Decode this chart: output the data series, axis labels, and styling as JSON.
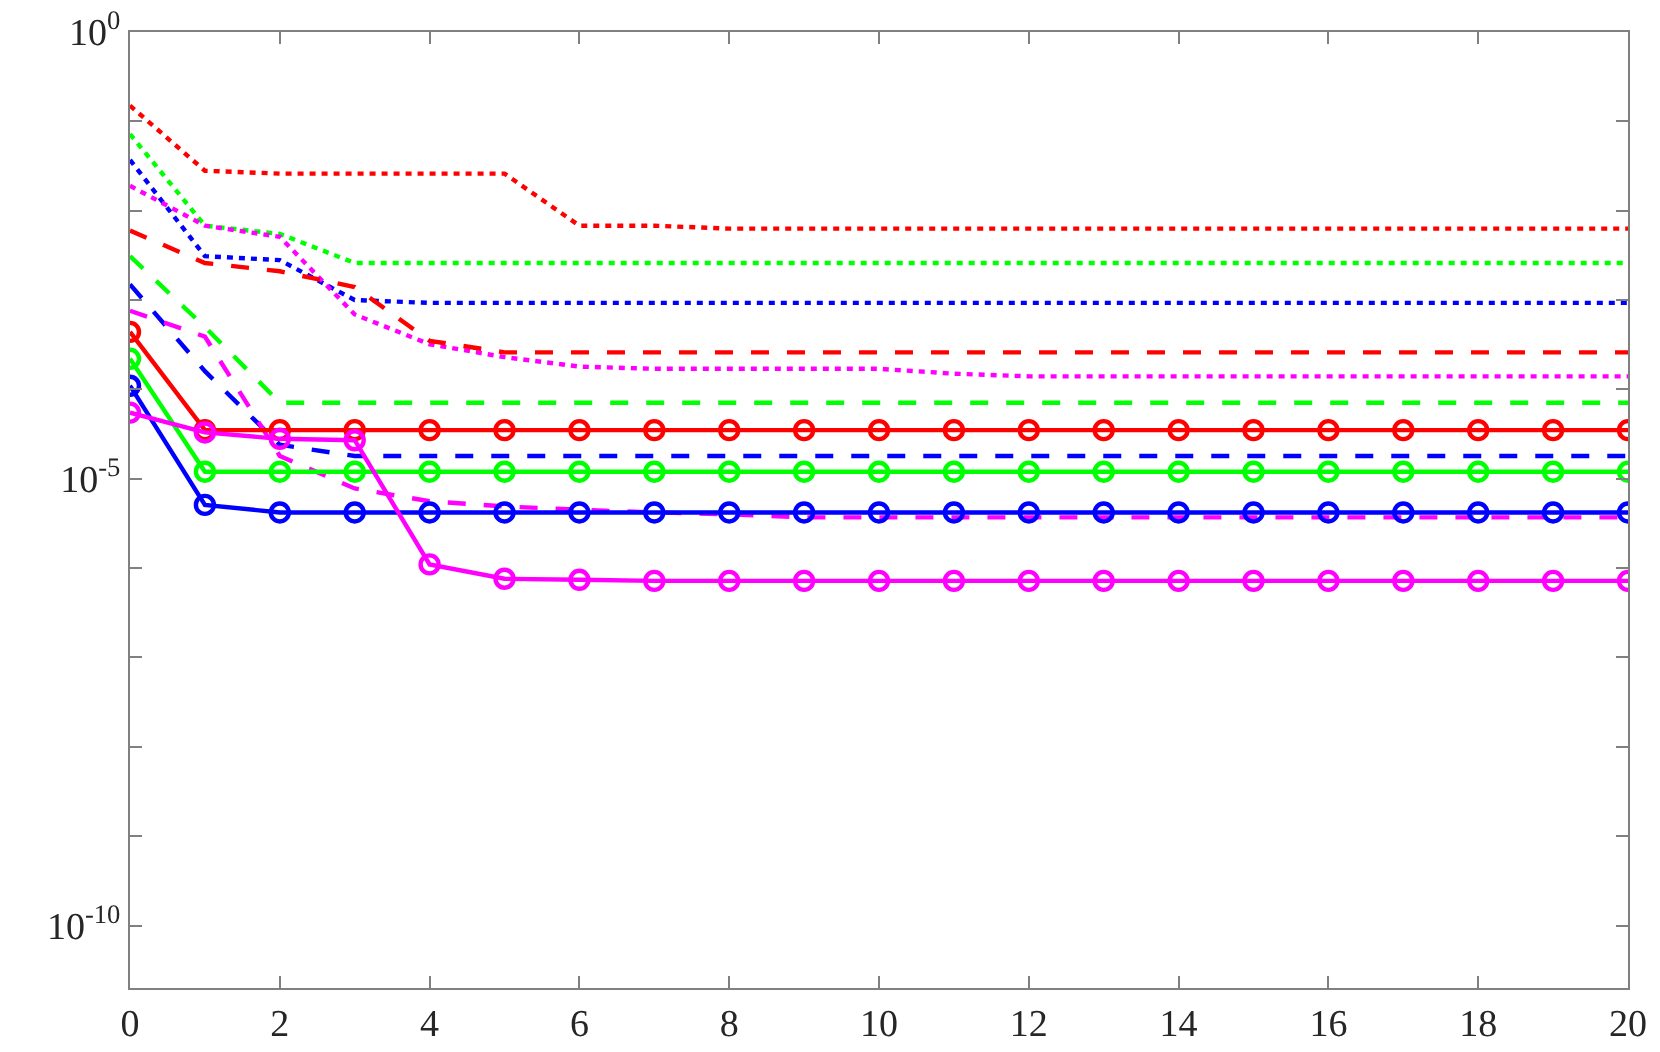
{
  "chart_data": {
    "type": "line",
    "x": [
      0,
      1,
      2,
      3,
      4,
      5,
      6,
      7,
      8,
      9,
      10,
      11,
      12,
      13,
      14,
      15,
      16,
      17,
      18,
      19,
      20
    ],
    "xlim": [
      0,
      20
    ],
    "xticks": [
      0,
      2,
      4,
      6,
      8,
      10,
      12,
      14,
      16,
      18,
      20
    ],
    "ylim": [
      2e-11,
      1
    ],
    "log": true,
    "grid": false,
    "yticks": [
      {
        "value": 1,
        "label": "10$^{0}$"
      },
      {
        "value": 0.1,
        "label": null
      },
      {
        "value": 0.01,
        "label": null
      },
      {
        "value": 0.001,
        "label": null
      },
      {
        "value": 0.0001,
        "label": null
      },
      {
        "value": 1e-05,
        "label": "10$^{-5}$"
      },
      {
        "value": 1e-06,
        "label": null
      },
      {
        "value": 1e-07,
        "label": null
      },
      {
        "value": 1e-08,
        "label": null
      },
      {
        "value": 1e-09,
        "label": null
      },
      {
        "value": 1e-10,
        "label": "10$^{-10}$"
      }
    ],
    "series": [
      {
        "color": "#ff0000",
        "line_style": "dotted",
        "marker": "none",
        "values": [
          0.15,
          0.028,
          0.026,
          0.026,
          0.026,
          0.026,
          0.0068,
          0.0068,
          0.0063,
          0.0063,
          0.0063,
          0.0063,
          0.0063,
          0.0063,
          0.0063,
          0.0063,
          0.0063,
          0.0063,
          0.0063,
          0.0063,
          0.0063
        ]
      },
      {
        "color": "#00ff00",
        "line_style": "dotted",
        "marker": "none",
        "values": [
          0.072,
          0.0068,
          0.0055,
          0.0026,
          0.0026,
          0.0026,
          0.0026,
          0.0026,
          0.0026,
          0.0026,
          0.0026,
          0.0026,
          0.0026,
          0.0026,
          0.0026,
          0.0026,
          0.0026,
          0.0026,
          0.0026,
          0.0026,
          0.0026
        ]
      },
      {
        "color": "#0000ff",
        "line_style": "dotted",
        "marker": "none",
        "values": [
          0.037,
          0.0031,
          0.0028,
          0.001,
          0.00093,
          0.00093,
          0.00093,
          0.00093,
          0.00093,
          0.00093,
          0.00093,
          0.00093,
          0.00093,
          0.00093,
          0.00093,
          0.00093,
          0.00093,
          0.00093,
          0.00093,
          0.00093,
          0.00093
        ]
      },
      {
        "color": "#ff00ff",
        "line_style": "dotted",
        "marker": "none",
        "values": [
          0.019,
          0.0068,
          0.0051,
          0.00069,
          0.00032,
          0.00023,
          0.00018,
          0.00017,
          0.00017,
          0.00017,
          0.00017,
          0.00015,
          0.00014,
          0.00014,
          0.00014,
          0.00014,
          0.00014,
          0.00014,
          0.00014,
          0.00014,
          0.00014
        ]
      },
      {
        "color": "#ff0000",
        "line_style": "dashed",
        "marker": "none",
        "values": [
          0.006,
          0.0026,
          0.0021,
          0.0014,
          0.00035,
          0.00026,
          0.00026,
          0.00026,
          0.00026,
          0.00026,
          0.00026,
          0.00026,
          0.00026,
          0.00026,
          0.00026,
          0.00026,
          0.00026,
          0.00026,
          0.00026,
          0.00026,
          0.00026
        ]
      },
      {
        "color": "#00ff00",
        "line_style": "dashed",
        "marker": "none",
        "values": [
          0.0031,
          0.0005,
          7.1e-05,
          7.1e-05,
          7.1e-05,
          7.1e-05,
          7.1e-05,
          7.1e-05,
          7.1e-05,
          7.1e-05,
          7.1e-05,
          7.1e-05,
          7.1e-05,
          7.1e-05,
          7.1e-05,
          7.1e-05,
          7.1e-05,
          7.1e-05,
          7.1e-05,
          7.1e-05,
          7.1e-05
        ]
      },
      {
        "color": "#0000ff",
        "line_style": "dashed",
        "marker": "none",
        "values": [
          0.0015,
          0.00016,
          2.4e-05,
          1.8e-05,
          1.8e-05,
          1.8e-05,
          1.8e-05,
          1.8e-05,
          1.8e-05,
          1.8e-05,
          1.8e-05,
          1.8e-05,
          1.8e-05,
          1.8e-05,
          1.8e-05,
          1.8e-05,
          1.8e-05,
          1.8e-05,
          1.8e-05,
          1.8e-05,
          1.8e-05
        ]
      },
      {
        "color": "#ff00ff",
        "line_style": "dashed",
        "marker": "none",
        "values": [
          0.00076,
          0.00039,
          1.8e-05,
          7.8e-06,
          5.6e-06,
          4.9e-06,
          4.5e-06,
          4.2e-06,
          4e-06,
          3.7e-06,
          3.7e-06,
          3.7e-06,
          3.7e-06,
          3.7e-06,
          3.7e-06,
          3.7e-06,
          3.7e-06,
          3.7e-06,
          3.7e-06,
          3.7e-06,
          3.7e-06
        ]
      },
      {
        "color": "#ff0000",
        "line_style": "solid",
        "marker": "circle",
        "values": [
          0.00044,
          3.5e-05,
          3.5e-05,
          3.5e-05,
          3.5e-05,
          3.5e-05,
          3.5e-05,
          3.5e-05,
          3.5e-05,
          3.5e-05,
          3.5e-05,
          3.5e-05,
          3.5e-05,
          3.5e-05,
          3.5e-05,
          3.5e-05,
          3.5e-05,
          3.5e-05,
          3.5e-05,
          3.5e-05,
          3.5e-05
        ]
      },
      {
        "color": "#00ff00",
        "line_style": "solid",
        "marker": "circle",
        "values": [
          0.00022,
          1.2e-05,
          1.2e-05,
          1.2e-05,
          1.2e-05,
          1.2e-05,
          1.2e-05,
          1.2e-05,
          1.2e-05,
          1.2e-05,
          1.2e-05,
          1.2e-05,
          1.2e-05,
          1.2e-05,
          1.2e-05,
          1.2e-05,
          1.2e-05,
          1.2e-05,
          1.2e-05,
          1.2e-05,
          1.2e-05
        ]
      },
      {
        "color": "#0000ff",
        "line_style": "solid",
        "marker": "circle",
        "values": [
          0.00011,
          5.1e-06,
          4.2e-06,
          4.2e-06,
          4.2e-06,
          4.2e-06,
          4.2e-06,
          4.2e-06,
          4.2e-06,
          4.2e-06,
          4.2e-06,
          4.2e-06,
          4.2e-06,
          4.2e-06,
          4.2e-06,
          4.2e-06,
          4.2e-06,
          4.2e-06,
          4.2e-06,
          4.2e-06,
          4.2e-06
        ]
      },
      {
        "color": "#ff00ff",
        "line_style": "solid",
        "marker": "circle",
        "values": [
          5.5e-05,
          3.3e-05,
          2.8e-05,
          2.7e-05,
          1.1e-06,
          7.6e-07,
          7.4e-07,
          7.2e-07,
          7.2e-07,
          7.2e-07,
          7.2e-07,
          7.2e-07,
          7.2e-07,
          7.2e-07,
          7.2e-07,
          7.2e-07,
          7.2e-07,
          7.2e-07,
          7.2e-07,
          7.2e-07,
          7.2e-07
        ]
      }
    ]
  }
}
